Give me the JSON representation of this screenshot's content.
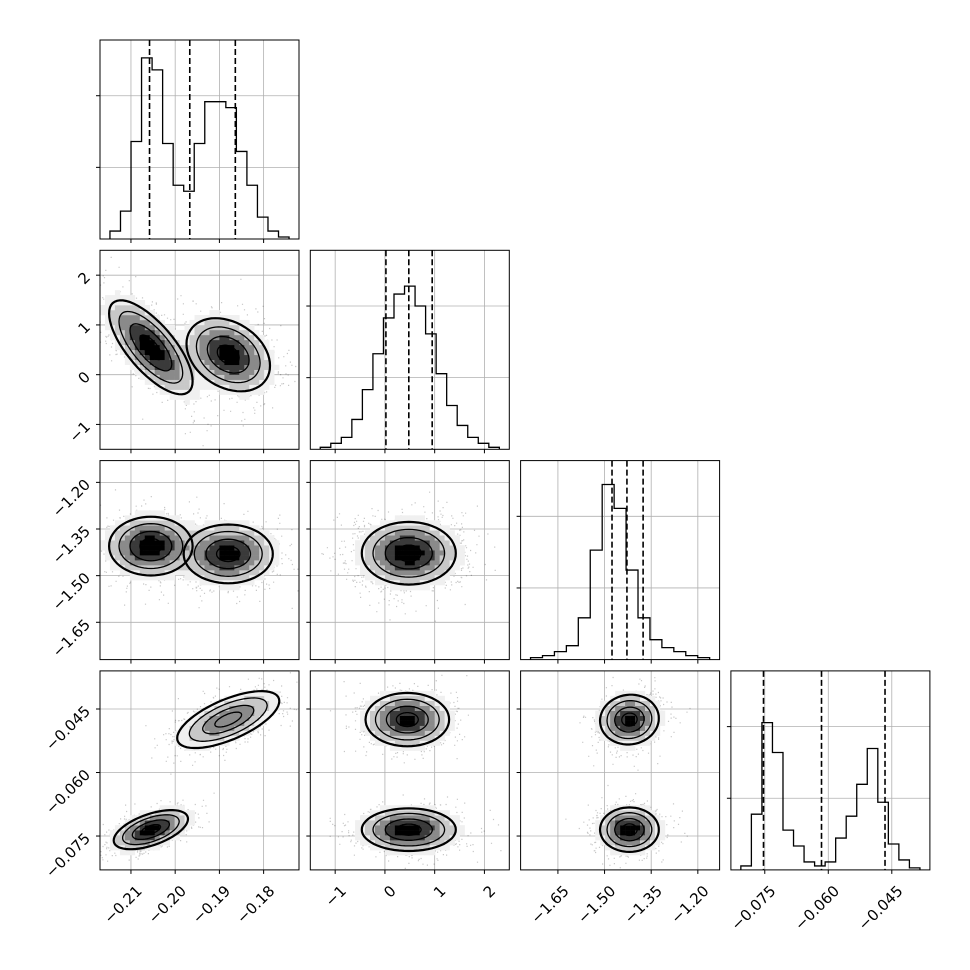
{
  "chart_data": {
    "type": "corner",
    "grid": true,
    "parameters": [
      {
        "range": [
          -0.217,
          -0.172
        ],
        "tick_values": [
          -0.21,
          -0.2,
          -0.19,
          -0.18
        ],
        "tick_labels": [
          "−0.21",
          "−0.20",
          "−0.19",
          "−0.18"
        ],
        "quantiles": [
          -0.2058,
          -0.1967,
          -0.1864
        ],
        "hist_bins": [
          0.04,
          0.14,
          0.49,
          0.91,
          0.85,
          0.48,
          0.27,
          0.24,
          0.48,
          0.69,
          0.69,
          0.66,
          0.44,
          0.27,
          0.11,
          0.04,
          0.01
        ],
        "modes": [
          {
            "mx": -0.2055,
            "my": 0.55,
            "sx": 0.0045,
            "sy": 0.45,
            "r": -0.72,
            "w": 0.5
          },
          {
            "mx": -0.188,
            "my": 0.4,
            "sx": 0.0045,
            "sy": 0.35,
            "r": -0.3,
            "w": 0.5
          }
        ],
        "scale": 1
      },
      {
        "range": [
          -1.5,
          2.5
        ],
        "tick_values": [
          -1,
          0,
          1,
          2
        ],
        "tick_labels": [
          "−1",
          "0",
          "1",
          "2"
        ],
        "quantiles": [
          0.02,
          0.48,
          0.95
        ],
        "hist_bins": [
          0.01,
          0.03,
          0.06,
          0.15,
          0.3,
          0.48,
          0.66,
          0.78,
          0.82,
          0.72,
          0.58,
          0.38,
          0.22,
          0.12,
          0.06,
          0.03,
          0.01
        ],
        "scale": 1
      },
      {
        "range": [
          -1.77,
          -1.13
        ],
        "tick_values": [
          -1.65,
          -1.5,
          -1.35,
          -1.2
        ],
        "tick_labels": [
          "−1.65",
          "−1.50",
          "−1.35",
          "−1.20"
        ],
        "quantiles": [
          -1.476,
          -1.428,
          -1.376
        ],
        "hist_bins": [
          0.01,
          0.02,
          0.04,
          0.07,
          0.21,
          0.55,
          0.88,
          0.76,
          0.45,
          0.21,
          0.1,
          0.06,
          0.04,
          0.02,
          0.01
        ],
        "modes": [
          {
            "mx": -1.42,
            "my": -0.0735,
            "sx": 0.045,
            "sy": 0.0025,
            "r": 0.0,
            "w": 0.5
          },
          {
            "mx": -1.42,
            "my": -0.0475,
            "sx": 0.045,
            "sy": 0.0028,
            "r": 0.05,
            "w": 0.5
          }
        ],
        "scale": 1
      },
      {
        "range": [
          -0.083,
          -0.036
        ],
        "tick_values": [
          -0.075,
          -0.06,
          -0.045
        ],
        "tick_labels": [
          "−0.075",
          "−0.060",
          "−0.045"
        ],
        "quantiles": [
          -0.0753,
          -0.0616,
          -0.0466
        ],
        "hist_bins": [
          0.02,
          0.28,
          0.74,
          0.59,
          0.2,
          0.12,
          0.04,
          0.02,
          0.04,
          0.16,
          0.27,
          0.43,
          0.61,
          0.34,
          0.13,
          0.05,
          0.01
        ],
        "scale": 1
      }
    ]
  }
}
